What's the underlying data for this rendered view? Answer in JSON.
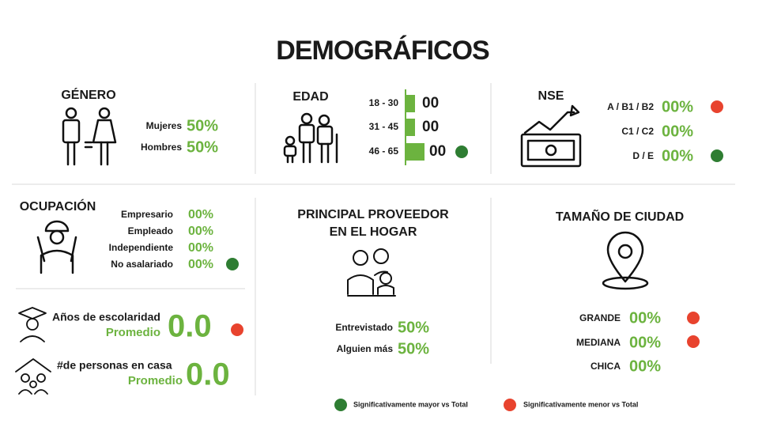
{
  "title": "DEMOGRÁFICOS",
  "genero": {
    "title": "GÉNERO",
    "rows": [
      {
        "label": "Mujeres",
        "value": "50%"
      },
      {
        "label": "Hombres",
        "value": "50%"
      }
    ]
  },
  "edad": {
    "title": "EDAD",
    "rows": [
      {
        "label": "18 - 30",
        "value": "00"
      },
      {
        "label": "31 - 45",
        "value": "00"
      },
      {
        "label": "46 - 65",
        "value": "00"
      }
    ]
  },
  "nse": {
    "title": "NSE",
    "rows": [
      {
        "label": "A / B1 / B2",
        "value": "00%"
      },
      {
        "label": "C1 / C2",
        "value": "00%"
      },
      {
        "label": "D / E",
        "value": "00%"
      }
    ]
  },
  "ocupacion": {
    "title": "OCUPACIÓN",
    "rows": [
      {
        "label": "Empresario",
        "value": "00%"
      },
      {
        "label": "Empleado",
        "value": "00%"
      },
      {
        "label": "Independiente",
        "value": "00%"
      },
      {
        "label": "No asalariado",
        "value": "00%"
      }
    ]
  },
  "escolaridad": {
    "label": "Años de escolaridad",
    "sub": "Promedio",
    "value": "0.0"
  },
  "personas": {
    "label": "#de personas en casa",
    "sub": "Promedio",
    "value": "0.0"
  },
  "proveedor": {
    "title": [
      "PRINCIPAL PROVEEDOR",
      "EN EL HOGAR"
    ],
    "rows": [
      {
        "label": "Entrevistado",
        "value": "50%"
      },
      {
        "label": "Alguien más",
        "value": "50%"
      }
    ]
  },
  "ciudad": {
    "title": "TAMAÑO DE CIUDAD",
    "rows": [
      {
        "label": "GRANDE",
        "value": "00%"
      },
      {
        "label": "MEDIANA",
        "value": "00%"
      },
      {
        "label": "CHICA",
        "value": "00%"
      }
    ]
  },
  "legend": [
    "Significativamente mayor vs Total",
    "Significativamente menor vs Total"
  ]
}
